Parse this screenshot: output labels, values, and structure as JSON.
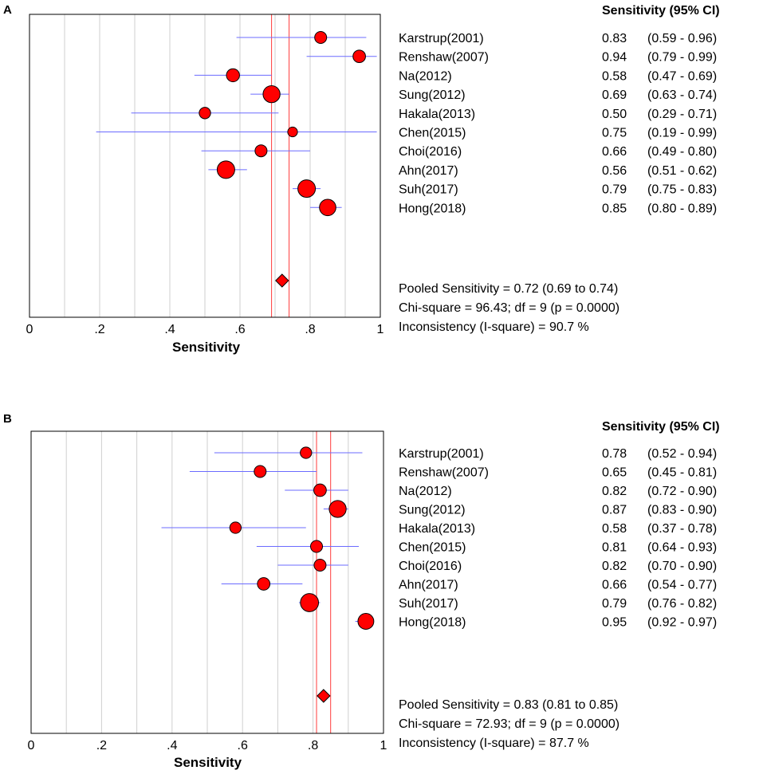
{
  "chart_data": [
    {
      "type": "forest",
      "panel": "A",
      "column_header": "Sensitivity (95% CI)",
      "xlabel": "Sensitivity",
      "xlim": [
        0,
        1
      ],
      "xticks": [
        "0",
        ".2",
        ".4",
        ".6",
        ".8",
        "1"
      ],
      "studies": [
        {
          "name": "Karstrup(2001)",
          "value": 0.83,
          "lo": 0.59,
          "hi": 0.96,
          "est": "0.83",
          "ci": "(0.59 - 0.96)",
          "weight": 0.5
        },
        {
          "name": "Renshaw(2007)",
          "value": 0.94,
          "lo": 0.79,
          "hi": 0.99,
          "est": "0.94",
          "ci": "(0.79 - 0.99)",
          "weight": 0.55
        },
        {
          "name": "Na(2012)",
          "value": 0.58,
          "lo": 0.47,
          "hi": 0.69,
          "est": "0.58",
          "ci": "(0.47 - 0.69)",
          "weight": 0.6
        },
        {
          "name": "Sung(2012)",
          "value": 0.69,
          "lo": 0.63,
          "hi": 0.74,
          "est": "0.69",
          "ci": "(0.63 - 0.74)",
          "weight": 0.95
        },
        {
          "name": "Hakala(2013)",
          "value": 0.5,
          "lo": 0.29,
          "hi": 0.71,
          "est": "0.50",
          "ci": "(0.29 - 0.71)",
          "weight": 0.45
        },
        {
          "name": "Chen(2015)",
          "value": 0.75,
          "lo": 0.19,
          "hi": 0.99,
          "est": "0.75",
          "ci": "(0.19 - 0.99)",
          "weight": 0.3
        },
        {
          "name": "Choi(2016)",
          "value": 0.66,
          "lo": 0.49,
          "hi": 0.8,
          "est": "0.66",
          "ci": "(0.49 - 0.80)",
          "weight": 0.5
        },
        {
          "name": "Ahn(2017)",
          "value": 0.56,
          "lo": 0.51,
          "hi": 0.62,
          "est": "0.56",
          "ci": "(0.51 - 0.62)",
          "weight": 1.0
        },
        {
          "name": "Suh(2017)",
          "value": 0.79,
          "lo": 0.75,
          "hi": 0.83,
          "est": "0.79",
          "ci": "(0.75 - 0.83)",
          "weight": 1.0
        },
        {
          "name": "Hong(2018)",
          "value": 0.85,
          "lo": 0.8,
          "hi": 0.89,
          "est": "0.85",
          "ci": "(0.80 - 0.89)",
          "weight": 0.9
        }
      ],
      "pooled": {
        "value": 0.72,
        "lo": 0.69,
        "hi": 0.74
      },
      "summary": [
        "Pooled Sensitivity = 0.72 (0.69 to 0.74)",
        "Chi-square = 96.43; df =  9 (p = 0.0000)",
        "Inconsistency (I-square) = 90.7 %"
      ]
    },
    {
      "type": "forest",
      "panel": "B",
      "column_header": "Sensitivity (95% CI)",
      "xlabel": "Sensitivity",
      "xlim": [
        0,
        1
      ],
      "xticks": [
        "0",
        ".2",
        ".4",
        ".6",
        ".8",
        "1"
      ],
      "studies": [
        {
          "name": "Karstrup(2001)",
          "value": 0.78,
          "lo": 0.52,
          "hi": 0.94,
          "est": "0.78",
          "ci": "(0.52 - 0.94)",
          "weight": 0.45
        },
        {
          "name": "Renshaw(2007)",
          "value": 0.65,
          "lo": 0.45,
          "hi": 0.81,
          "est": "0.65",
          "ci": "(0.45 - 0.81)",
          "weight": 0.5
        },
        {
          "name": "Na(2012)",
          "value": 0.82,
          "lo": 0.72,
          "hi": 0.9,
          "est": "0.82",
          "ci": "(0.72 - 0.90)",
          "weight": 0.55
        },
        {
          "name": "Sung(2012)",
          "value": 0.87,
          "lo": 0.83,
          "hi": 0.9,
          "est": "0.87",
          "ci": "(0.83 - 0.90)",
          "weight": 0.95
        },
        {
          "name": "Hakala(2013)",
          "value": 0.58,
          "lo": 0.37,
          "hi": 0.78,
          "est": "0.58",
          "ci": "(0.37 - 0.78)",
          "weight": 0.45
        },
        {
          "name": "Chen(2015)",
          "value": 0.81,
          "lo": 0.64,
          "hi": 0.93,
          "est": "0.81",
          "ci": "(0.64 - 0.93)",
          "weight": 0.5
        },
        {
          "name": "Choi(2016)",
          "value": 0.82,
          "lo": 0.7,
          "hi": 0.9,
          "est": "0.82",
          "ci": "(0.70 - 0.90)",
          "weight": 0.5
        },
        {
          "name": "Ahn(2017)",
          "value": 0.66,
          "lo": 0.54,
          "hi": 0.77,
          "est": "0.66",
          "ci": "(0.54 - 0.77)",
          "weight": 0.55
        },
        {
          "name": "Suh(2017)",
          "value": 0.79,
          "lo": 0.76,
          "hi": 0.82,
          "est": "0.79",
          "ci": "(0.76 - 0.82)",
          "weight": 1.05
        },
        {
          "name": "Hong(2018)",
          "value": 0.95,
          "lo": 0.92,
          "hi": 0.97,
          "est": "0.95",
          "ci": "(0.92 - 0.97)",
          "weight": 0.85
        }
      ],
      "pooled": {
        "value": 0.83,
        "lo": 0.81,
        "hi": 0.85
      },
      "summary": [
        "Pooled Sensitivity = 0.83 (0.81 to 0.85)",
        "Chi-square = 72.93; df =  9 (p = 0.0000)",
        "Inconsistency (I-square) = 87.7 %"
      ]
    }
  ],
  "colors": {
    "marker_fill": "#ff0000",
    "marker_stroke": "#000000",
    "ci_line": "#6b6bff",
    "pooled_band": "#ff3b3b",
    "grid": "#cfcfcf",
    "frame": "#000000"
  }
}
